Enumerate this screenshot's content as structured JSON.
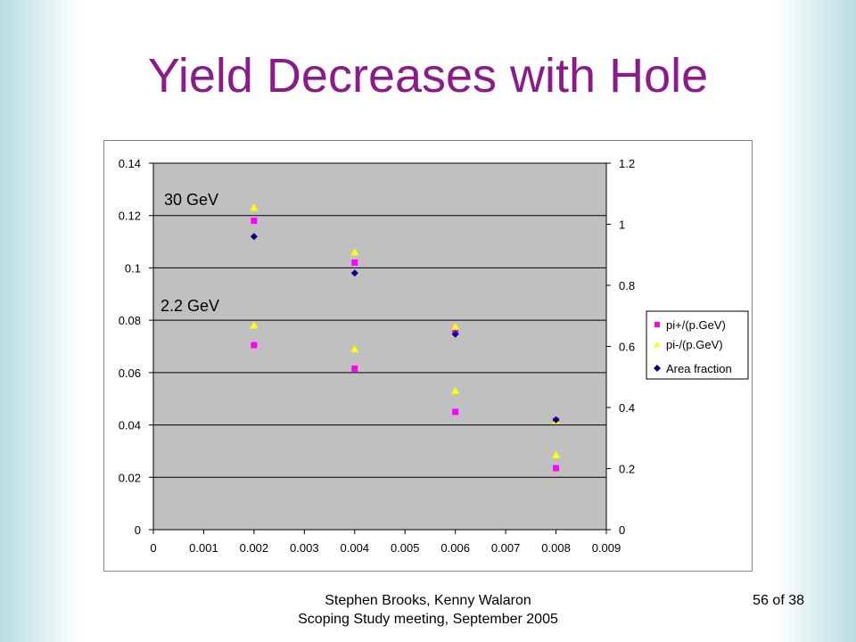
{
  "slide": {
    "title": "Yield Decreases with Hole",
    "footer_authors": "Stephen Brooks, Kenny Walaron",
    "footer_meeting": "Scoping Study meeting, September 2005",
    "slide_number": "56 of 38"
  },
  "colors": {
    "title": "#8b1a8b",
    "plot_area": "#c0c0c0",
    "pi_plus": "#ff00ff",
    "pi_minus": "#ffff00",
    "area_fraction": "#000080"
  },
  "chart_data": {
    "type": "scatter",
    "title": "",
    "xlabel": "",
    "ylabel": "",
    "xlim": [
      0,
      0.009
    ],
    "ylim": [
      0,
      0.14
    ],
    "y2lim": [
      0,
      1.2
    ],
    "x_ticks": [
      "0",
      "0.001",
      "0.002",
      "0.003",
      "0.004",
      "0.005",
      "0.006",
      "0.007",
      "0.008",
      "0.009"
    ],
    "y_ticks": [
      "0",
      "0.02",
      "0.04",
      "0.06",
      "0.08",
      "0.1",
      "0.12",
      "0.14"
    ],
    "y2_ticks": [
      "0",
      "0.2",
      "0.4",
      "0.6",
      "0.8",
      "1",
      "1.2"
    ],
    "grid": "horizontal",
    "legend_position": "right",
    "annotations": [
      "30 GeV",
      "2.2 GeV"
    ],
    "series": [
      {
        "name": "pi+/(p.GeV)",
        "axis": "left",
        "marker": "square",
        "color": "#ff00ff",
        "points": [
          [
            0.002,
            0.118
          ],
          [
            0.004,
            0.102
          ],
          [
            0.006,
            0.0755
          ],
          [
            0.008,
            0.0415
          ],
          [
            0.002,
            0.0705
          ],
          [
            0.004,
            0.0615
          ],
          [
            0.006,
            0.045
          ],
          [
            0.008,
            0.0235
          ]
        ]
      },
      {
        "name": "pi-/(p.GeV)",
        "axis": "left",
        "marker": "triangle",
        "color": "#ffff00",
        "points": [
          [
            0.002,
            0.123
          ],
          [
            0.004,
            0.106
          ],
          [
            0.006,
            0.0775
          ],
          [
            0.008,
            0.0415
          ],
          [
            0.002,
            0.078
          ],
          [
            0.004,
            0.069
          ],
          [
            0.006,
            0.053
          ],
          [
            0.008,
            0.0285
          ]
        ]
      },
      {
        "name": "Area fraction",
        "axis": "right",
        "marker": "diamond",
        "color": "#000080",
        "points": [
          [
            0.002,
            0.96
          ],
          [
            0.004,
            0.84
          ],
          [
            0.006,
            0.64
          ],
          [
            0.008,
            0.36
          ]
        ]
      }
    ]
  }
}
